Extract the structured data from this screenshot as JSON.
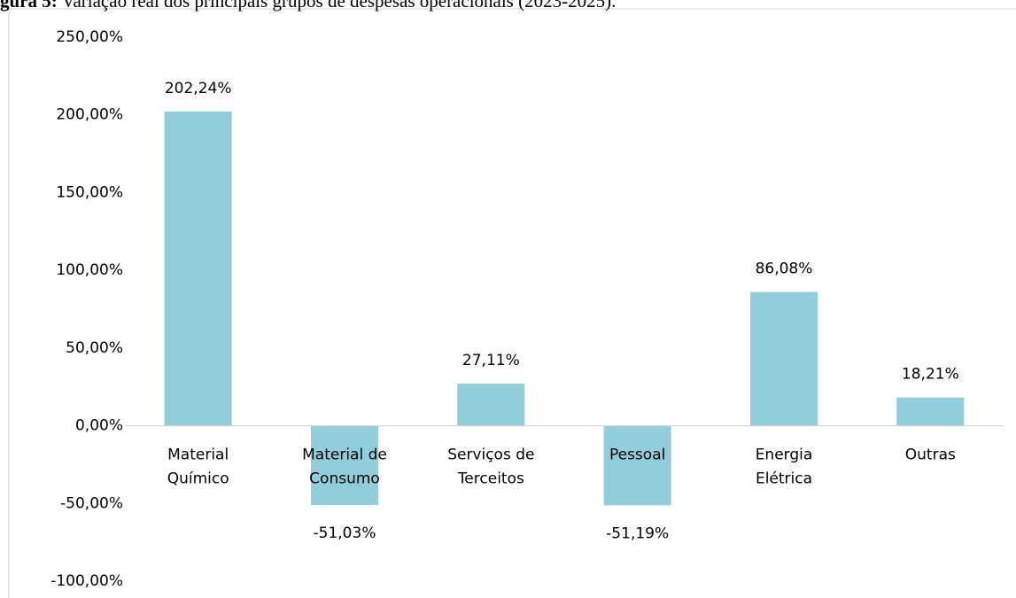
{
  "chart_data": {
    "type": "bar",
    "title_prefix": "gura 5:",
    "title": "Variação real dos principais grupos de despesas operacionais (2023-2025).",
    "categories": [
      "Material Químico",
      "Material de Consumo",
      "Serviços de Terceitos",
      "Pessoal",
      "Energia Elétrica",
      "Outras"
    ],
    "values": [
      202.24,
      -51.03,
      27.11,
      -51.19,
      86.08,
      18.21
    ],
    "value_labels": [
      "202,24%",
      "-51,03%",
      "27,11%",
      "-51,19%",
      "86,08%",
      "18,21%"
    ],
    "color": "#92cddc",
    "ylim": [
      -100,
      250
    ],
    "yticks": [
      {
        "value": -100,
        "label": "-100,00%"
      },
      {
        "value": -50,
        "label": "-50,00%"
      },
      {
        "value": 0,
        "label": "0,00%"
      },
      {
        "value": 50,
        "label": "50,00%"
      },
      {
        "value": 100,
        "label": "100,00%"
      },
      {
        "value": 150,
        "label": "150,00%"
      },
      {
        "value": 200,
        "label": "200,00%"
      },
      {
        "value": 250,
        "label": "250,00%"
      }
    ],
    "grid": false
  }
}
